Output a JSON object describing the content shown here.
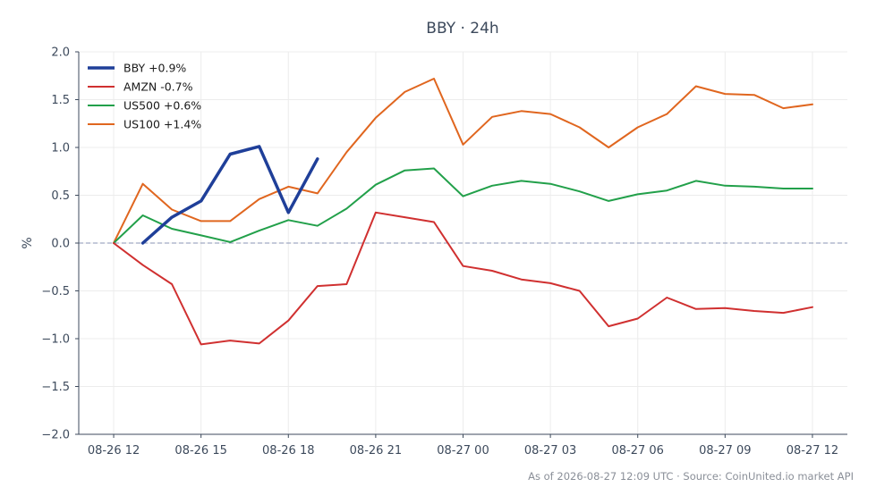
{
  "chart_data": {
    "type": "line",
    "title": "BBY · 24h",
    "ylabel": "%",
    "xlabel": "",
    "ylim": [
      -2.0,
      2.0
    ],
    "yticks": [
      "2.0",
      "1.5",
      "1.0",
      "0.5",
      "0.0",
      "−0.5",
      "−1.0",
      "−1.5",
      "−2.0"
    ],
    "ytick_values": [
      2.0,
      1.5,
      1.0,
      0.5,
      0.0,
      -0.5,
      -1.0,
      -1.5,
      -2.0
    ],
    "xticks": [
      "08-26 12",
      "08-26 15",
      "08-26 18",
      "08-26 21",
      "08-27 00",
      "08-27 03",
      "08-27 06",
      "08-27 09",
      "08-27 12"
    ],
    "xtick_values": [
      0,
      3,
      6,
      9,
      12,
      15,
      18,
      21,
      24
    ],
    "x_range": [
      -1.2,
      25.2
    ],
    "grid": true,
    "zero_line": true,
    "legend_position": "top-left",
    "series": [
      {
        "name": "BBY +0.9%",
        "color": "#1f3f99",
        "width": 3.5,
        "x": [
          1,
          2,
          3,
          4,
          5,
          6,
          7
        ],
        "values": [
          0.0,
          0.27,
          0.44,
          0.93,
          1.01,
          0.32,
          0.88
        ]
      },
      {
        "name": "AMZN -0.7%",
        "color": "#d03030",
        "width": 2,
        "x": [
          0,
          1,
          2,
          3,
          4,
          5,
          6,
          7,
          8,
          9,
          10,
          11,
          12,
          13,
          14,
          15,
          16,
          17,
          18,
          19,
          20,
          21,
          22,
          23,
          24
        ],
        "values": [
          0.0,
          -0.23,
          -0.43,
          -1.06,
          -1.02,
          -1.05,
          -0.81,
          -0.45,
          -0.43,
          0.32,
          0.27,
          0.22,
          -0.24,
          -0.29,
          -0.38,
          -0.42,
          -0.5,
          -0.87,
          -0.79,
          -0.57,
          -0.69,
          -0.68,
          -0.71,
          -0.73,
          -0.67
        ]
      },
      {
        "name": "US500 +0.6%",
        "color": "#22a04a",
        "width": 2,
        "x": [
          0,
          1,
          2,
          3,
          4,
          5,
          6,
          7,
          8,
          9,
          10,
          11,
          12,
          13,
          14,
          15,
          16,
          17,
          18,
          19,
          20,
          21,
          22,
          23,
          24
        ],
        "values": [
          0.0,
          0.29,
          0.15,
          0.08,
          0.01,
          0.13,
          0.24,
          0.18,
          0.36,
          0.61,
          0.76,
          0.78,
          0.49,
          0.6,
          0.65,
          0.62,
          0.54,
          0.44,
          0.51,
          0.55,
          0.65,
          0.6,
          0.59,
          0.57,
          0.57
        ]
      },
      {
        "name": "US100 +1.4%",
        "color": "#e0661f",
        "width": 2,
        "x": [
          0,
          1,
          2,
          3,
          4,
          5,
          6,
          7,
          8,
          9,
          10,
          11,
          12,
          13,
          14,
          15,
          16,
          17,
          18,
          19,
          20,
          21,
          22,
          23,
          24
        ],
        "values": [
          0.0,
          0.62,
          0.35,
          0.23,
          0.23,
          0.46,
          0.59,
          0.52,
          0.95,
          1.31,
          1.58,
          1.72,
          1.03,
          1.32,
          1.38,
          1.35,
          1.21,
          1.0,
          1.21,
          1.35,
          1.64,
          1.56,
          1.55,
          1.41,
          1.45
        ]
      }
    ]
  },
  "footer": {
    "text": "As of 2026-08-27 12:09 UTC · Source: CoinUnited.io market API"
  }
}
